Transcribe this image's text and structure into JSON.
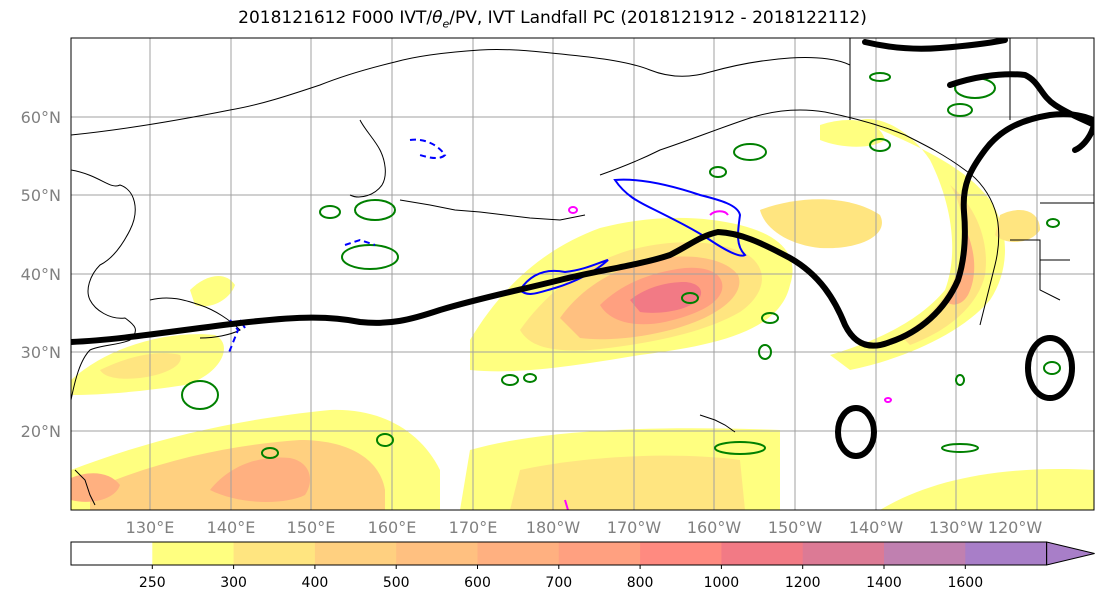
{
  "title_main": "2018121612 F000 IVT/",
  "title_theta": "θ",
  "title_theta_sub": "e",
  "title_tail": "/PV, IVT Landfall PC (2018121912 - 2018122112)",
  "lat_labels": [
    "60°N",
    "50°N",
    "40°N",
    "30°N",
    "20°N"
  ],
  "lon_labels": [
    "130°E",
    "140°E",
    "150°E",
    "160°E",
    "170°E",
    "180°W",
    "170°W",
    "160°W",
    "150°W",
    "140°W",
    "130°W",
    "120°W"
  ],
  "colorbar": {
    "ticks": [
      "250",
      "300",
      "400",
      "500",
      "600",
      "700",
      "800",
      "1000",
      "1200",
      "1400",
      "1600"
    ],
    "colors": [
      "#ffffff",
      "#ffff80",
      "#ffe580",
      "#ffd080",
      "#ffc080",
      "#ffb080",
      "#ffa080",
      "#ff8a80",
      "#f27a85",
      "#dc7a95",
      "#c080b0",
      "#a87ec8"
    ]
  },
  "colors": {
    "trajectory": "#000000",
    "theta_e_contour": "#008000",
    "pv_contour": "#0000ff",
    "magenta_contour": "#ff00ff",
    "coastline": "#000000",
    "gridline": "#a0a0a0"
  }
}
